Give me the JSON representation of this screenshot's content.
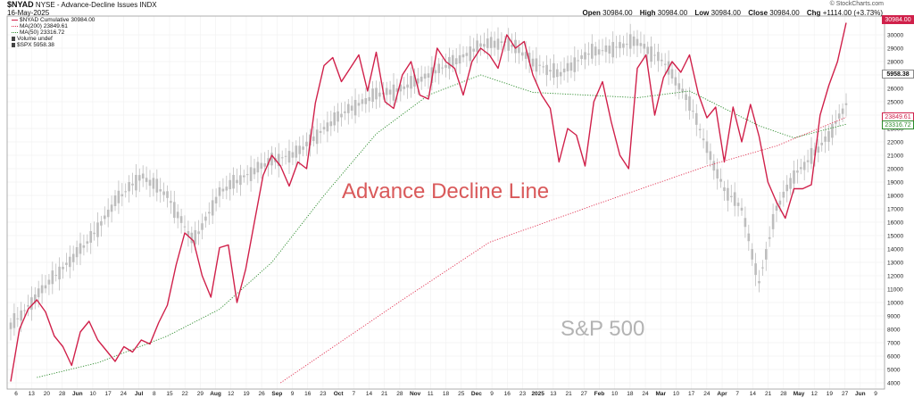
{
  "header": {
    "symbol": "$NYAD",
    "description": "NYSE - Advance-Decline Issues",
    "exchange": "INDX",
    "date": "16-May-2025",
    "watermark": "© StockCharts.com",
    "open_label": "Open",
    "open": "30984.00",
    "high_label": "High",
    "high": "30984.00",
    "low_label": "Low",
    "low": "30984.00",
    "close_label": "Close",
    "close": "30984.00",
    "chg_label": "Chg",
    "chg": "+1114.00 (+3.73%)"
  },
  "legend": [
    {
      "text": "$NYAD Cumulative 30984.00",
      "color": "#d0204a",
      "style": "solid"
    },
    {
      "text": "MA(200) 23849.61",
      "color": "#e03050",
      "style": "dotted"
    },
    {
      "text": "MA(50) 23316.72",
      "color": "#2a8a2a",
      "style": "dotted"
    },
    {
      "text": "Volume undef",
      "color": "#444444",
      "style": "bar"
    },
    {
      "text": "$SPX 5958.38",
      "color": "#444444",
      "style": "bar"
    }
  ],
  "annotations": {
    "adline": "Advance Decline Line",
    "spx": "S&P 500"
  },
  "price_tags": {
    "nyad": "30984.00",
    "spx": "5958.38",
    "ma200": "23849.61",
    "ma50": "23316.72"
  },
  "colors": {
    "adline": "#d0204a",
    "ma200": "#e03050",
    "ma50": "#2a8a2a",
    "spx": "#bdbdbd",
    "adline_label": "#d9595a",
    "spx_label": "#b3b3b3"
  },
  "chart_data": {
    "type": "line",
    "title": "$NYAD NYSE - Advance-Decline Issues",
    "ylim": [
      4000,
      31000
    ],
    "y_ticks": [
      4000,
      5000,
      6000,
      7000,
      8000,
      9000,
      10000,
      11000,
      12000,
      13000,
      14000,
      15000,
      16000,
      17000,
      18000,
      19000,
      20000,
      21000,
      22000,
      23000,
      24000,
      25000,
      26000,
      27000,
      28000,
      29000,
      30000
    ],
    "x_tick_labels": [
      "6",
      "13",
      "20",
      "28",
      "Jun",
      "10",
      "17",
      "24",
      "Jul",
      "8",
      "15",
      "22",
      "29",
      "Aug",
      "12",
      "19",
      "26",
      "Sep",
      "9",
      "16",
      "23",
      "Oct",
      "7",
      "14",
      "21",
      "28",
      "Nov",
      "11",
      "18",
      "25",
      "Dec",
      "9",
      "16",
      "23",
      "2025",
      "13",
      "21",
      "27",
      "Feb",
      "10",
      "18",
      "24",
      "Mar",
      "10",
      "17",
      "24",
      "Apr",
      "7",
      "14",
      "21",
      "28",
      "May",
      "12",
      "19",
      "27",
      "Jun",
      "9"
    ],
    "x_range": [
      0,
      100
    ],
    "grid": true,
    "legend_position": "top-left",
    "series": [
      {
        "name": "$NYAD Cumulative",
        "x": [
          0,
          1,
          2,
          3,
          4,
          5,
          6,
          7,
          8,
          9,
          10,
          11,
          12,
          13,
          14,
          15,
          16,
          17,
          18,
          19,
          20,
          21,
          22,
          23,
          24,
          25,
          26,
          27,
          28,
          29,
          30,
          31,
          32,
          33,
          34,
          35,
          36,
          37,
          38,
          39,
          40,
          41,
          42,
          43,
          44,
          45,
          46,
          47,
          48,
          49,
          50,
          51,
          52,
          53,
          54,
          55,
          56,
          57,
          58,
          59,
          60,
          61,
          62,
          63,
          64,
          65,
          66,
          67,
          68,
          69,
          70,
          71,
          72,
          73,
          74,
          75,
          76,
          77,
          78,
          79,
          80,
          81,
          82,
          83,
          84,
          85,
          86,
          87,
          88,
          89,
          90,
          91,
          92,
          93,
          94,
          95,
          96
        ],
        "values": [
          4100,
          8000,
          9500,
          10200,
          9300,
          7500,
          6700,
          5300,
          7800,
          8600,
          7200,
          6400,
          5600,
          6700,
          6300,
          7200,
          6900,
          8500,
          9800,
          12800,
          15200,
          14600,
          12000,
          10400,
          14100,
          14300,
          10000,
          12500,
          16000,
          19500,
          21000,
          20200,
          18700,
          20500,
          20000,
          24900,
          27700,
          28300,
          26500,
          27500,
          28500,
          25800,
          28700,
          25000,
          24500,
          27000,
          28000,
          25500,
          25200,
          29000,
          28000,
          27500,
          25500,
          28000,
          29000,
          28500,
          27500,
          30000,
          29000,
          29500,
          27000,
          25500,
          24500,
          20500,
          23000,
          22500,
          20200,
          25000,
          26500,
          23500,
          21000,
          20000,
          27500,
          28500,
          24000,
          26800,
          28000,
          27200,
          28500,
          25600,
          23800,
          24600,
          20500,
          24600,
          22000,
          24800,
          22400,
          19000,
          17500,
          16300,
          18500,
          18500,
          18800,
          24000,
          26200,
          28000,
          30900
        ]
      },
      {
        "name": "MA(200)",
        "x": [
          31,
          45,
          55,
          68,
          80,
          88,
          96
        ],
        "values": [
          4000,
          10200,
          14500,
          17500,
          20200,
          21700,
          23850
        ]
      },
      {
        "name": "MA(50)",
        "x": [
          3,
          10,
          18,
          24,
          30,
          36,
          42,
          48,
          54,
          60,
          66,
          72,
          78,
          82,
          86,
          90,
          96
        ],
        "values": [
          4400,
          5500,
          7500,
          9500,
          13000,
          18000,
          22600,
          25500,
          27000,
          25700,
          25500,
          25300,
          25800,
          24500,
          23200,
          22300,
          23320
        ]
      },
      {
        "name": "$SPX",
        "x": [
          0,
          3,
          6,
          9,
          12,
          15,
          18,
          21,
          24,
          27,
          30,
          33,
          36,
          39,
          42,
          45,
          48,
          51,
          54,
          57,
          60,
          63,
          66,
          69,
          72,
          75,
          78,
          80,
          82,
          84,
          86,
          88,
          90,
          92,
          94,
          96
        ],
        "values": [
          8200,
          10500,
          12600,
          14600,
          17500,
          19500,
          18000,
          14500,
          18200,
          19500,
          20600,
          21200,
          23000,
          24500,
          25500,
          26000,
          27000,
          28000,
          29200,
          29500,
          28000,
          27000,
          28500,
          29000,
          29500,
          28000,
          25000,
          21500,
          18500,
          17000,
          11500,
          17000,
          19500,
          20800,
          22500,
          24800
        ]
      }
    ]
  }
}
